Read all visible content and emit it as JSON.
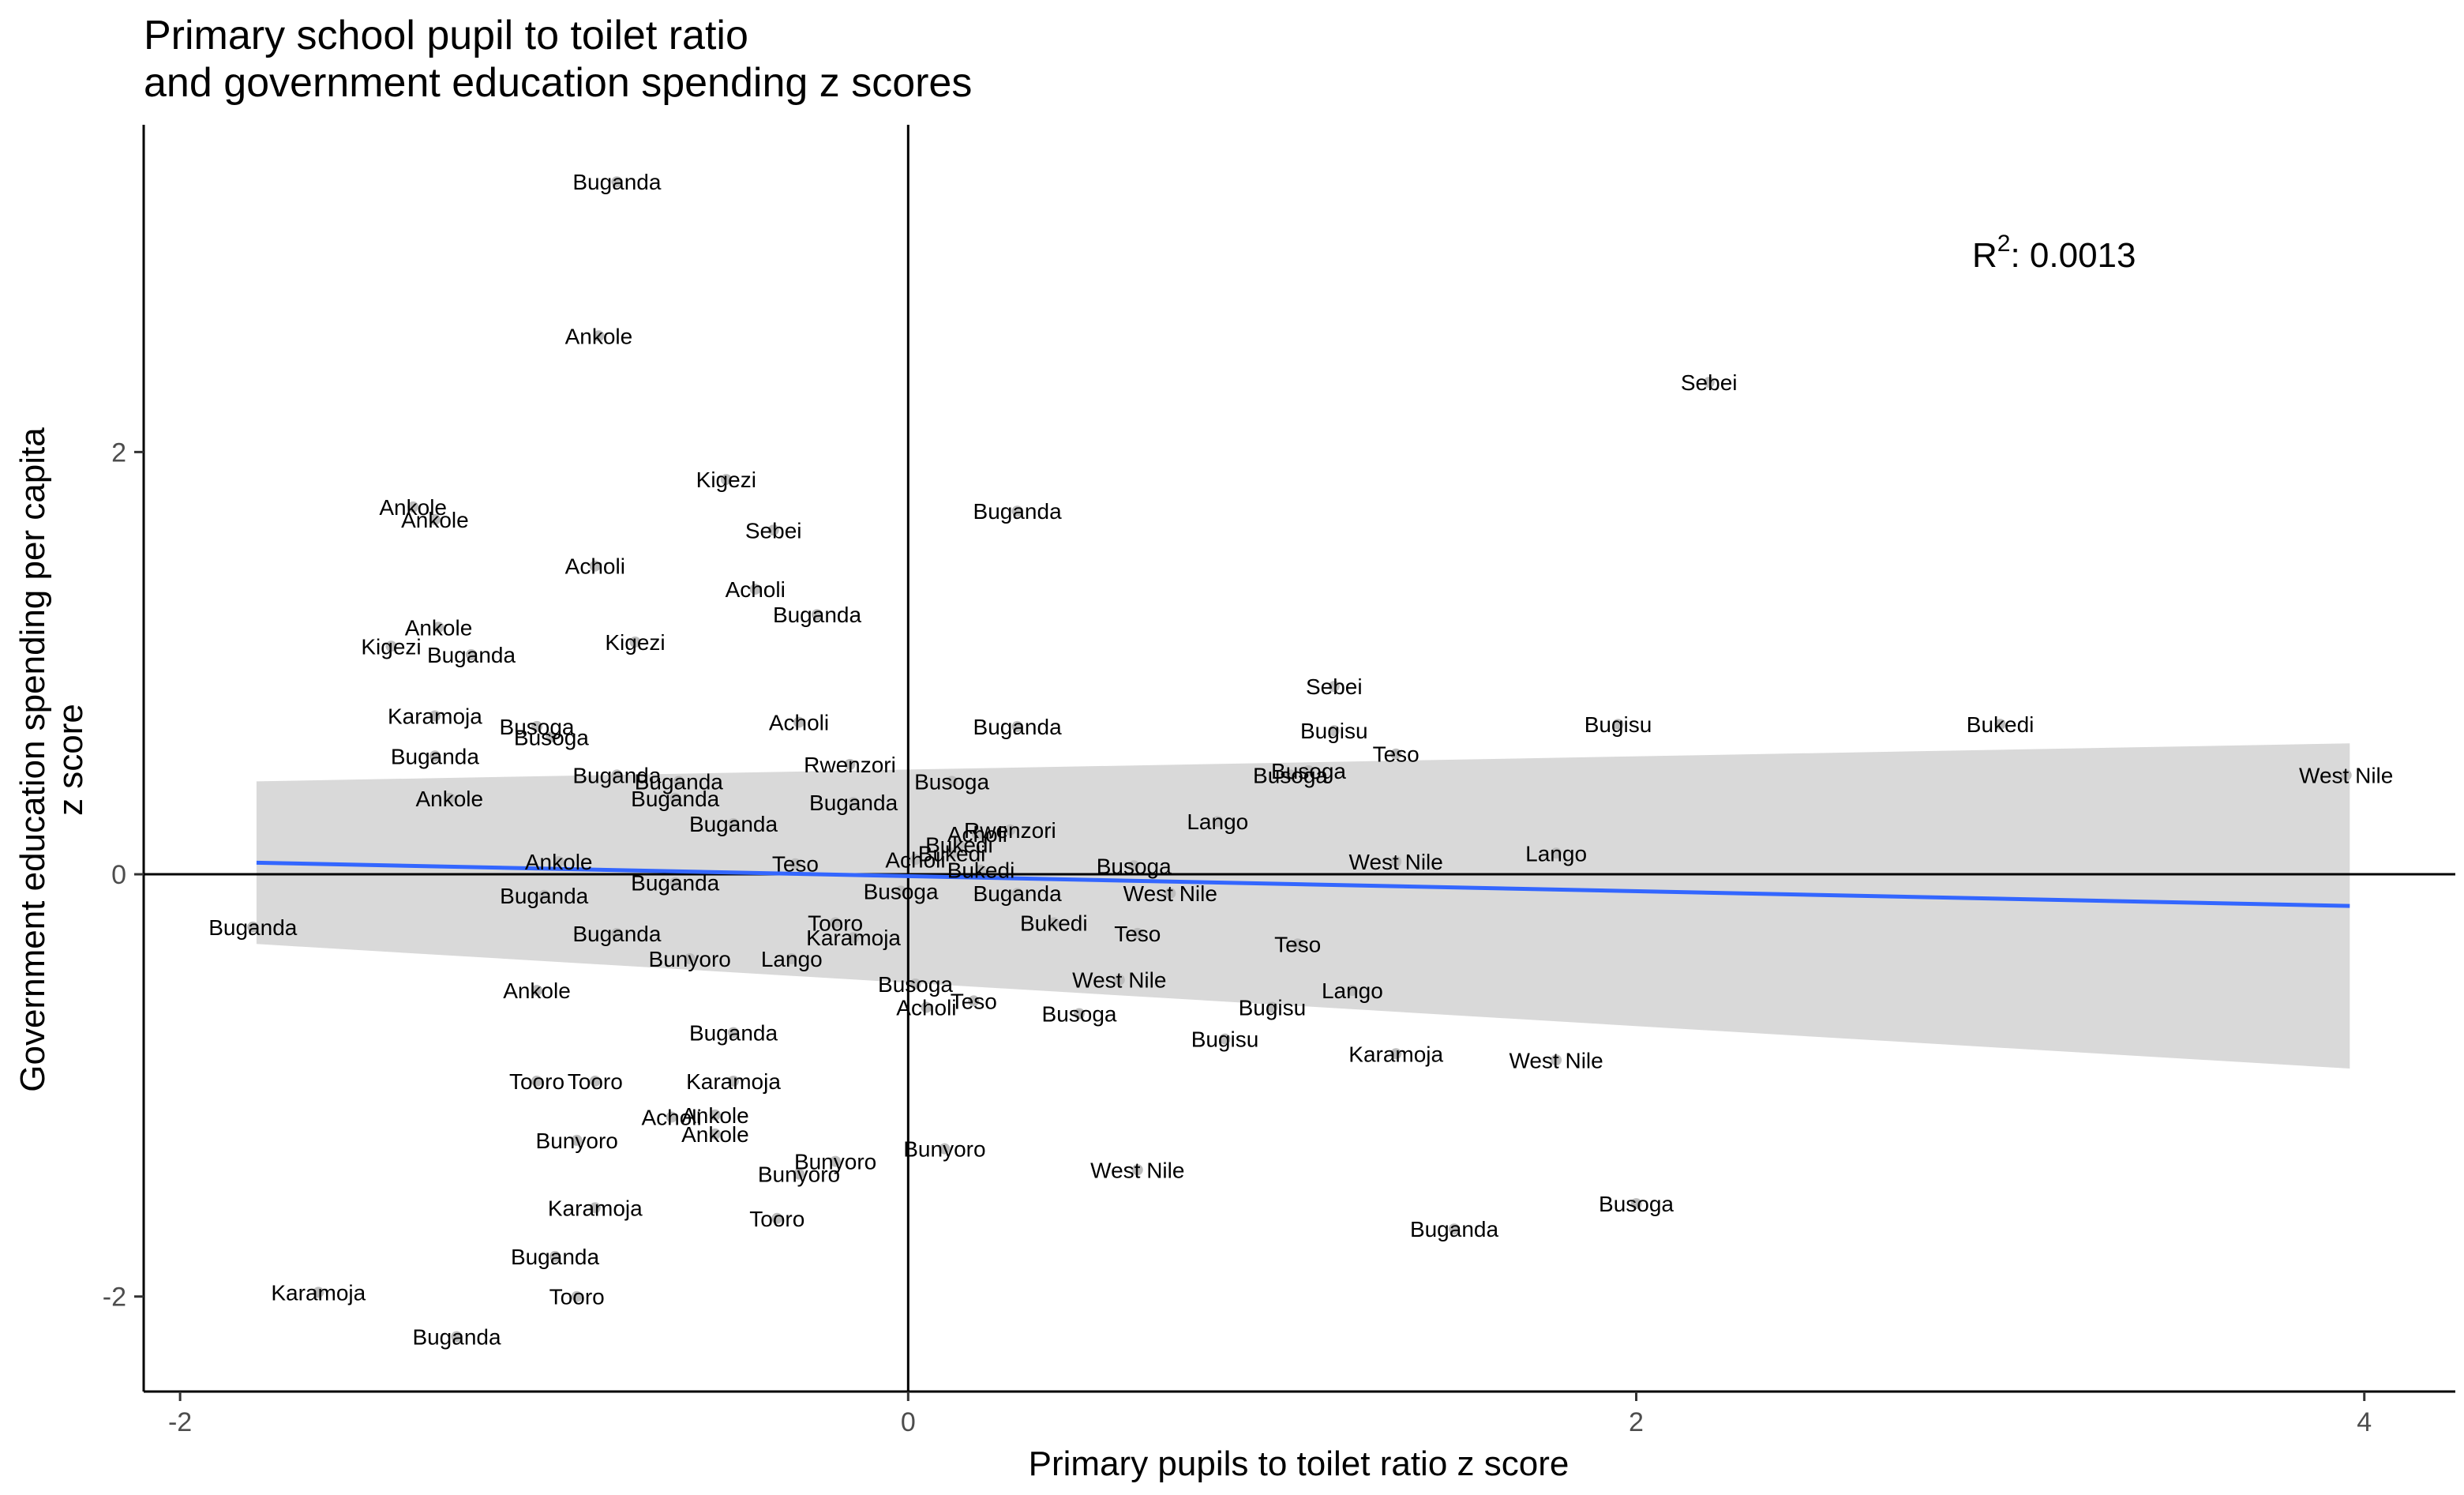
{
  "chart_data": {
    "type": "scatter",
    "title_lines": [
      "Primary school pupil to toilet ratio",
      "and government education spending z scores"
    ],
    "xlabel": "Primary pupils to toilet ratio z score",
    "ylabel_lines": [
      "Government education spending per capita",
      "z score"
    ],
    "xlim": [
      -2.1,
      4.25
    ],
    "ylim": [
      -2.45,
      3.55
    ],
    "xticks": [
      -2,
      0,
      2,
      4
    ],
    "yticks": [
      -2,
      0,
      2
    ],
    "xtick_labels": [
      "-2",
      "0",
      "2",
      "4"
    ],
    "ytick_labels": [
      "-2",
      "0",
      "2"
    ],
    "reference_lines": {
      "x": 0,
      "y": 0
    },
    "annotation": {
      "prefix": "R",
      "superscript": "2",
      "text": ": 0.0013"
    },
    "trend": {
      "x_start": -1.79,
      "y_start": 0.055,
      "x_end": 3.96,
      "y_end": -0.15,
      "ci_start": [
        -0.33,
        0.44
      ],
      "ci_end": [
        -0.92,
        0.62
      ]
    },
    "point_color": "#bdbdbd",
    "line_color": "#3366ff",
    "ribbon_color": "#d9d9d9",
    "points": [
      {
        "x": -0.8,
        "y": 3.28,
        "label": "Buganda"
      },
      {
        "x": -0.85,
        "y": 2.55,
        "label": "Ankole"
      },
      {
        "x": 2.2,
        "y": 2.33,
        "label": "Sebei"
      },
      {
        "x": -1.36,
        "y": 1.74,
        "label": "Ankole"
      },
      {
        "x": -1.3,
        "y": 1.68,
        "label": "Ankole"
      },
      {
        "x": -0.5,
        "y": 1.87,
        "label": "Kigezi"
      },
      {
        "x": -0.37,
        "y": 1.63,
        "label": "Sebei"
      },
      {
        "x": 0.3,
        "y": 1.72,
        "label": "Buganda"
      },
      {
        "x": -0.86,
        "y": 1.46,
        "label": "Acholi"
      },
      {
        "x": -0.42,
        "y": 1.35,
        "label": "Acholi"
      },
      {
        "x": -0.25,
        "y": 1.23,
        "label": "Buganda"
      },
      {
        "x": -1.29,
        "y": 1.17,
        "label": "Ankole"
      },
      {
        "x": -1.42,
        "y": 1.08,
        "label": "Kigezi"
      },
      {
        "x": -1.2,
        "y": 1.04,
        "label": "Buganda"
      },
      {
        "x": -0.75,
        "y": 1.1,
        "label": "Kigezi"
      },
      {
        "x": 1.17,
        "y": 0.89,
        "label": "Sebei"
      },
      {
        "x": -1.3,
        "y": 0.75,
        "label": "Karamoja"
      },
      {
        "x": -1.02,
        "y": 0.7,
        "label": "Busoga"
      },
      {
        "x": -0.98,
        "y": 0.65,
        "label": "Busoga"
      },
      {
        "x": -0.3,
        "y": 0.72,
        "label": "Acholi"
      },
      {
        "x": 0.3,
        "y": 0.7,
        "label": "Buganda"
      },
      {
        "x": 1.17,
        "y": 0.68,
        "label": "Bugisu"
      },
      {
        "x": 1.95,
        "y": 0.71,
        "label": "Bugisu"
      },
      {
        "x": 3.0,
        "y": 0.71,
        "label": "Bukedi"
      },
      {
        "x": -1.3,
        "y": 0.56,
        "label": "Buganda"
      },
      {
        "x": -0.16,
        "y": 0.52,
        "label": "Rwenzori"
      },
      {
        "x": 1.34,
        "y": 0.57,
        "label": "Teso"
      },
      {
        "x": 1.1,
        "y": 0.49,
        "label": "Busoga"
      },
      {
        "x": 1.05,
        "y": 0.47,
        "label": "Busoga"
      },
      {
        "x": 3.95,
        "y": 0.47,
        "label": "West Nile"
      },
      {
        "x": -0.8,
        "y": 0.47,
        "label": "Buganda"
      },
      {
        "x": -0.63,
        "y": 0.44,
        "label": "Buganda"
      },
      {
        "x": 0.12,
        "y": 0.44,
        "label": "Busoga"
      },
      {
        "x": -1.26,
        "y": 0.36,
        "label": "Ankole"
      },
      {
        "x": -0.64,
        "y": 0.36,
        "label": "Buganda"
      },
      {
        "x": -0.15,
        "y": 0.34,
        "label": "Buganda"
      },
      {
        "x": 0.85,
        "y": 0.25,
        "label": "Lango"
      },
      {
        "x": -0.48,
        "y": 0.24,
        "label": "Buganda"
      },
      {
        "x": 0.28,
        "y": 0.21,
        "label": "Rwenzori"
      },
      {
        "x": 0.19,
        "y": 0.19,
        "label": "Acholi"
      },
      {
        "x": 0.14,
        "y": 0.14,
        "label": "Bukedi"
      },
      {
        "x": 0.12,
        "y": 0.1,
        "label": "Bukedi"
      },
      {
        "x": 0.2,
        "y": 0.02,
        "label": "Bukedi"
      },
      {
        "x": 1.78,
        "y": 0.1,
        "label": "Lango"
      },
      {
        "x": 1.34,
        "y": 0.06,
        "label": "West Nile"
      },
      {
        "x": 0.62,
        "y": 0.04,
        "label": "Busoga"
      },
      {
        "x": -0.96,
        "y": 0.06,
        "label": "Ankole"
      },
      {
        "x": 0.02,
        "y": 0.07,
        "label": "Acholi"
      },
      {
        "x": -0.31,
        "y": 0.05,
        "label": "Teso"
      },
      {
        "x": -0.64,
        "y": -0.04,
        "label": "Buganda"
      },
      {
        "x": 0.72,
        "y": -0.09,
        "label": "West Nile"
      },
      {
        "x": -1.0,
        "y": -0.1,
        "label": "Buganda"
      },
      {
        "x": -0.02,
        "y": -0.08,
        "label": "Busoga"
      },
      {
        "x": 0.3,
        "y": -0.09,
        "label": "Buganda"
      },
      {
        "x": -1.8,
        "y": -0.25,
        "label": "Buganda"
      },
      {
        "x": -0.2,
        "y": -0.23,
        "label": "Tooro"
      },
      {
        "x": 0.4,
        "y": -0.23,
        "label": "Bukedi"
      },
      {
        "x": 0.63,
        "y": -0.28,
        "label": "Teso"
      },
      {
        "x": -0.8,
        "y": -0.28,
        "label": "Buganda"
      },
      {
        "x": -0.15,
        "y": -0.3,
        "label": "Karamoja"
      },
      {
        "x": 1.07,
        "y": -0.33,
        "label": "Teso"
      },
      {
        "x": -0.6,
        "y": -0.4,
        "label": "Bunyoro"
      },
      {
        "x": -0.32,
        "y": -0.4,
        "label": "Lango"
      },
      {
        "x": -1.02,
        "y": -0.55,
        "label": "Ankole"
      },
      {
        "x": 0.58,
        "y": -0.5,
        "label": "West Nile"
      },
      {
        "x": 1.22,
        "y": -0.55,
        "label": "Lango"
      },
      {
        "x": 0.02,
        "y": -0.52,
        "label": "Busoga"
      },
      {
        "x": 0.18,
        "y": -0.6,
        "label": "Teso"
      },
      {
        "x": 0.05,
        "y": -0.63,
        "label": "Acholi"
      },
      {
        "x": 1.0,
        "y": -0.63,
        "label": "Bugisu"
      },
      {
        "x": 0.47,
        "y": -0.66,
        "label": "Busoga"
      },
      {
        "x": -0.48,
        "y": -0.75,
        "label": "Buganda"
      },
      {
        "x": 0.87,
        "y": -0.78,
        "label": "Bugisu"
      },
      {
        "x": 1.34,
        "y": -0.85,
        "label": "Karamoja"
      },
      {
        "x": 1.78,
        "y": -0.88,
        "label": "West Nile"
      },
      {
        "x": -0.86,
        "y": -0.98,
        "label": "Tooro"
      },
      {
        "x": -1.02,
        "y": -0.98,
        "label": "Tooro"
      },
      {
        "x": -0.48,
        "y": -0.98,
        "label": "Karamoja"
      },
      {
        "x": -0.65,
        "y": -1.15,
        "label": "Acholi"
      },
      {
        "x": -0.53,
        "y": -1.14,
        "label": "Ankole"
      },
      {
        "x": -0.53,
        "y": -1.23,
        "label": "Ankole"
      },
      {
        "x": -0.91,
        "y": -1.26,
        "label": "Bunyoro"
      },
      {
        "x": 0.1,
        "y": -1.3,
        "label": "Bunyoro"
      },
      {
        "x": -0.2,
        "y": -1.36,
        "label": "Bunyoro"
      },
      {
        "x": -0.3,
        "y": -1.42,
        "label": "Bunyoro"
      },
      {
        "x": 0.63,
        "y": -1.4,
        "label": "West Nile"
      },
      {
        "x": -0.86,
        "y": -1.58,
        "label": "Karamoja"
      },
      {
        "x": -0.36,
        "y": -1.63,
        "label": "Tooro"
      },
      {
        "x": 1.5,
        "y": -1.68,
        "label": "Buganda"
      },
      {
        "x": 2.0,
        "y": -1.56,
        "label": "Busoga"
      },
      {
        "x": -0.97,
        "y": -1.81,
        "label": "Buganda"
      },
      {
        "x": -1.62,
        "y": -1.98,
        "label": "Karamoja"
      },
      {
        "x": -0.91,
        "y": -2.0,
        "label": "Tooro"
      },
      {
        "x": -1.24,
        "y": -2.19,
        "label": "Buganda"
      }
    ]
  }
}
